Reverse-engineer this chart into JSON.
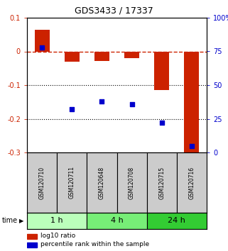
{
  "title": "GDS3433 / 17337",
  "samples": [
    "GSM120710",
    "GSM120711",
    "GSM120648",
    "GSM120708",
    "GSM120715",
    "GSM120716"
  ],
  "log10_ratio": [
    0.065,
    -0.03,
    -0.028,
    -0.02,
    -0.115,
    -0.3
  ],
  "percentile_rank": [
    78,
    32,
    38,
    36,
    22,
    5
  ],
  "ylim": [
    -0.3,
    0.1
  ],
  "yticks": [
    0.1,
    0.0,
    -0.1,
    -0.2,
    -0.3
  ],
  "ytick_labels": [
    "0.1",
    "0",
    "-0.1",
    "-0.2",
    "-0.3"
  ],
  "right_yticks_pct": [
    100,
    75,
    50,
    25,
    0
  ],
  "bar_color": "#cc2200",
  "dot_color": "#0000cc",
  "dashed_line_color": "#cc2200",
  "groups": [
    {
      "label": "1 h",
      "indices": [
        0,
        1
      ],
      "color": "#bbffbb"
    },
    {
      "label": "4 h",
      "indices": [
        2,
        3
      ],
      "color": "#77ee77"
    },
    {
      "label": "24 h",
      "indices": [
        4,
        5
      ],
      "color": "#33cc33"
    }
  ],
  "time_label": "time",
  "legend_bar_label": "log10 ratio",
  "legend_dot_label": "percentile rank within the sample",
  "bar_width": 0.5
}
